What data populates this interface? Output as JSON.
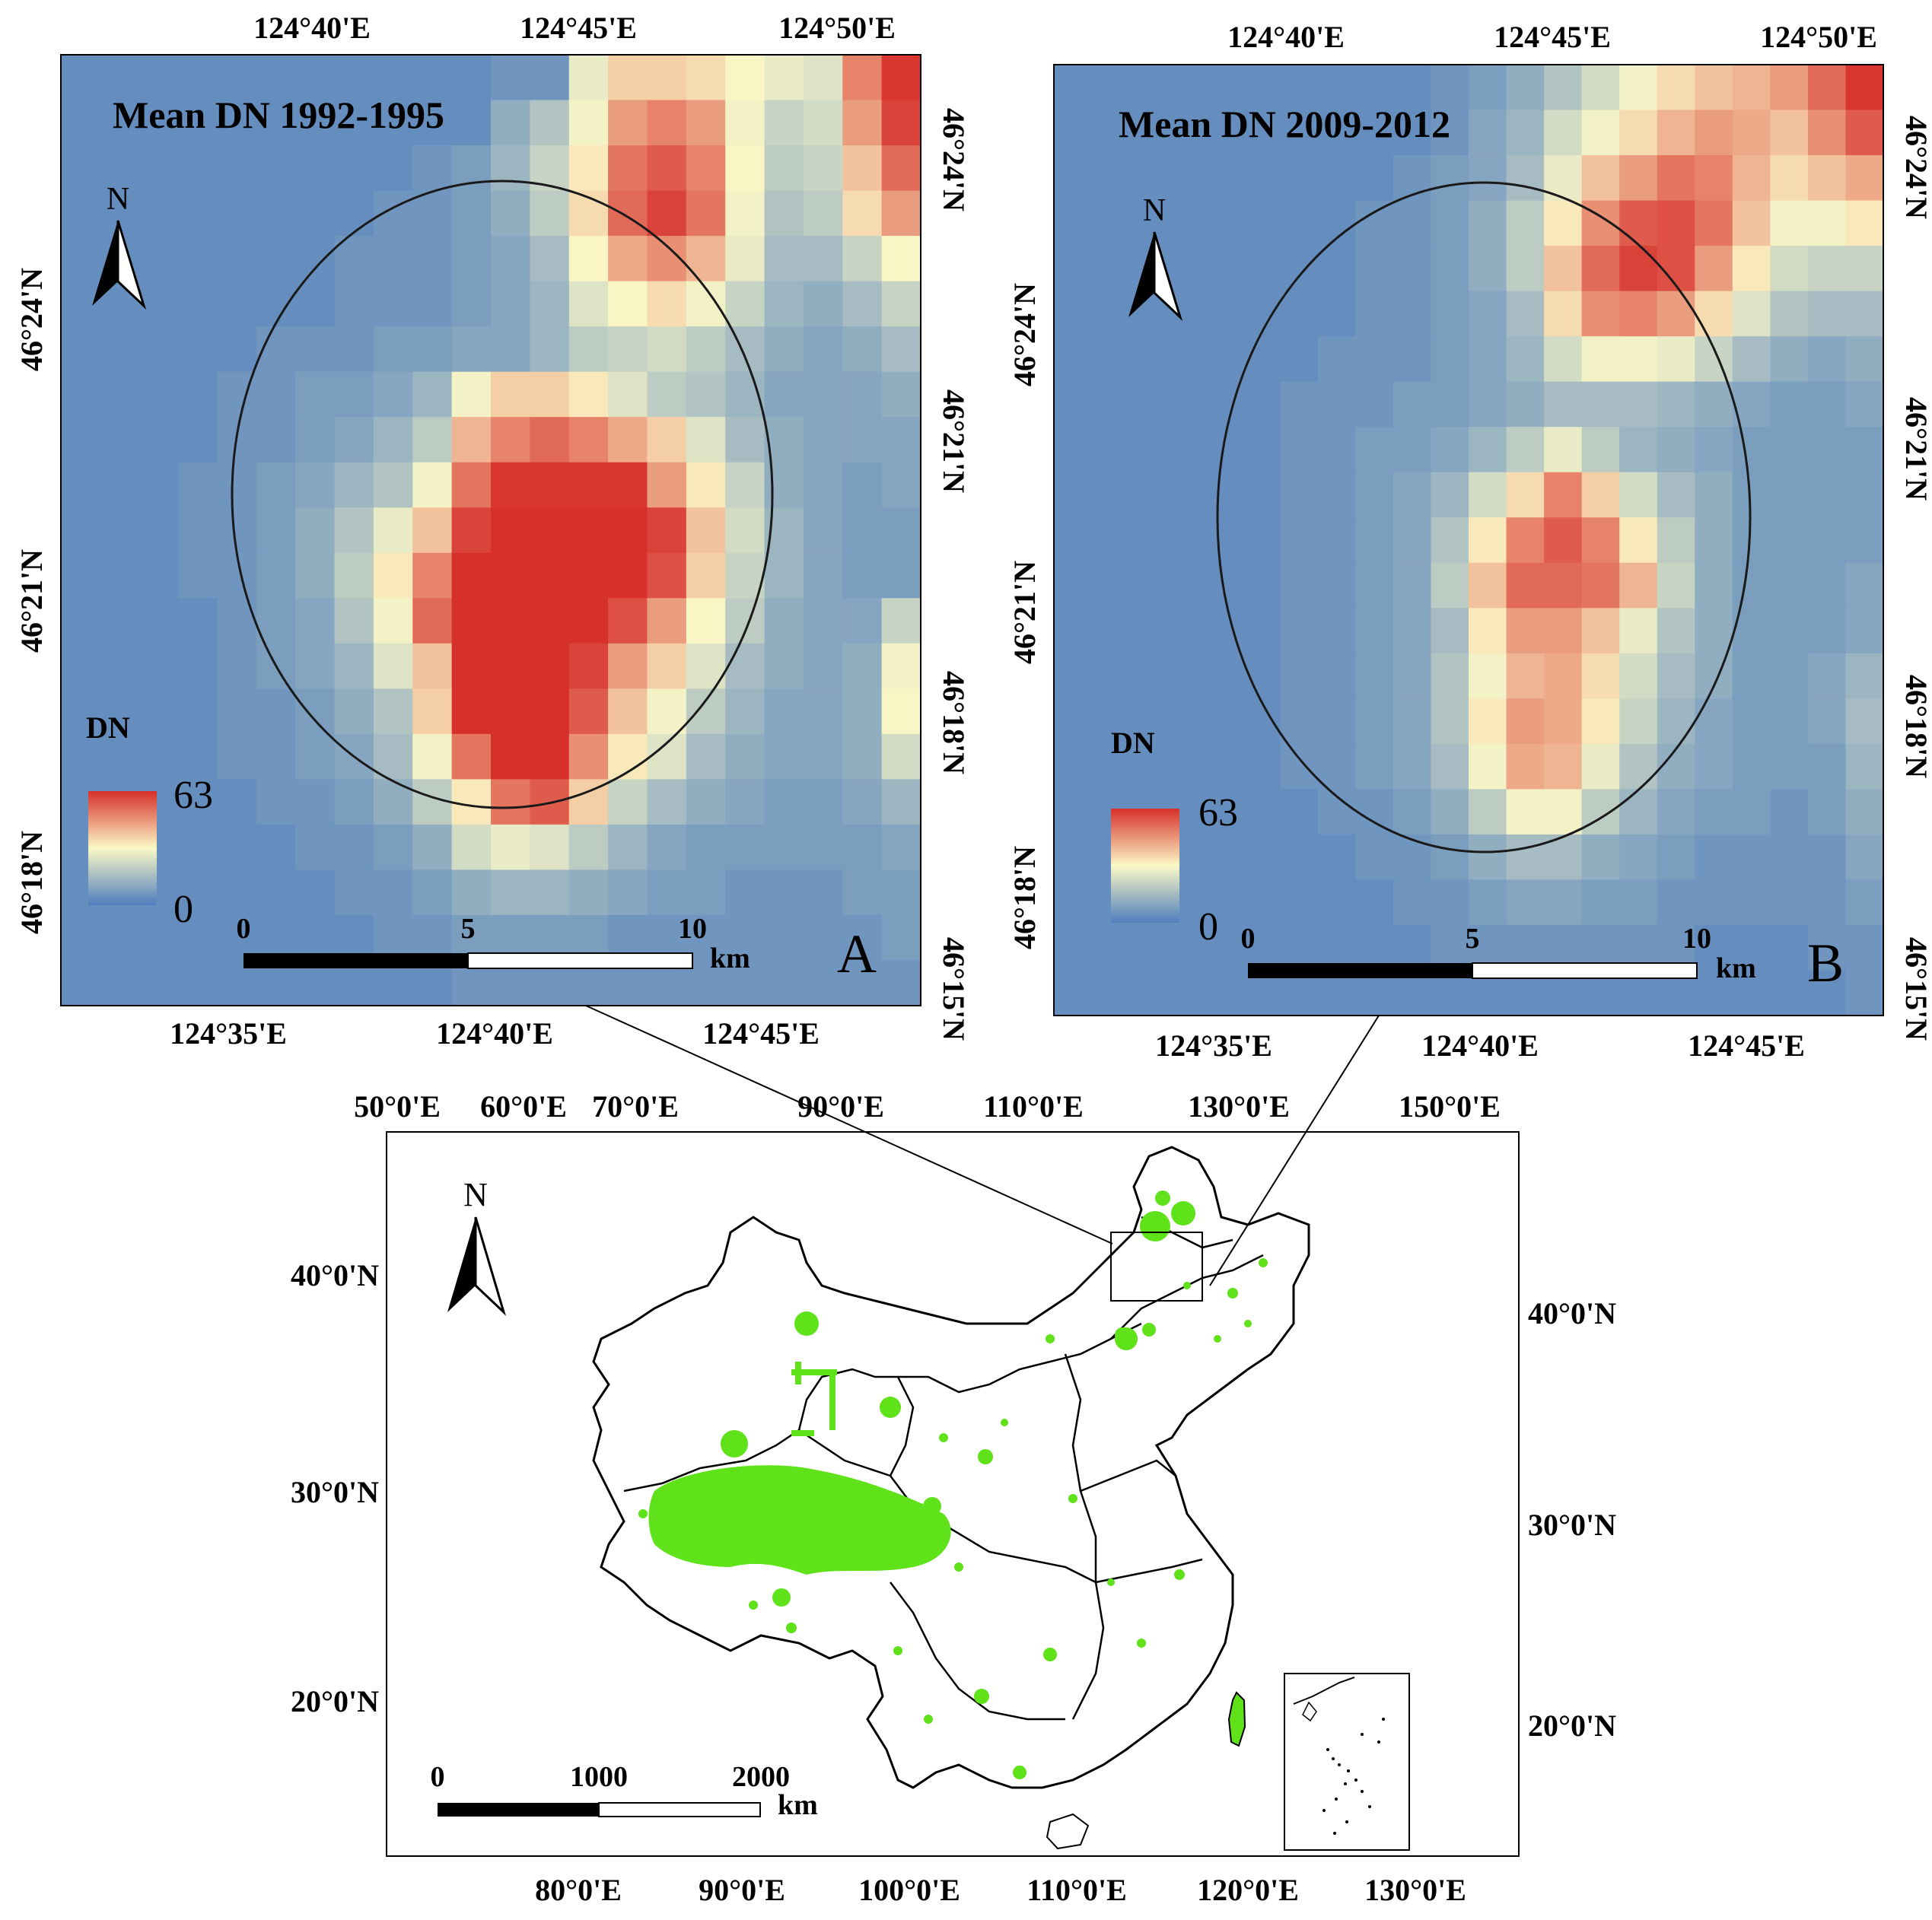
{
  "panel_a": {
    "title": "Mean DN 1992-1995",
    "letter": "A",
    "north": "N",
    "top_ticks": [
      "124°40'E",
      "124°45'E",
      "124°50'E"
    ],
    "bottom_ticks": [
      "124°35'E",
      "124°40'E",
      "124°45'E"
    ],
    "left_ticks": [
      "46°24'N",
      "46°21'N",
      "46°18'N"
    ],
    "right_ticks": [
      "46°24'N",
      "46°21'N",
      "46°18'N",
      "46°15'N"
    ],
    "legend": {
      "title": "DN",
      "max": "63",
      "min": "0"
    },
    "scalebar": {
      "labels": [
        "0",
        "5",
        "10"
      ],
      "unit": "km"
    },
    "grid_dn": [
      [
        4,
        4,
        4,
        4,
        4,
        4,
        4,
        4,
        4,
        4,
        4,
        6,
        6,
        28,
        38,
        38,
        36,
        32,
        28,
        26,
        50,
        62
      ],
      [
        4,
        4,
        4,
        4,
        4,
        4,
        4,
        4,
        4,
        4,
        4,
        12,
        18,
        30,
        46,
        50,
        46,
        30,
        22,
        24,
        46,
        60
      ],
      [
        4,
        4,
        4,
        4,
        4,
        4,
        4,
        4,
        4,
        6,
        8,
        14,
        22,
        34,
        52,
        56,
        50,
        32,
        20,
        22,
        40,
        54
      ],
      [
        4,
        4,
        4,
        4,
        4,
        4,
        4,
        4,
        6,
        6,
        8,
        12,
        20,
        36,
        54,
        60,
        52,
        30,
        18,
        20,
        36,
        46
      ],
      [
        4,
        4,
        4,
        4,
        4,
        4,
        4,
        6,
        6,
        6,
        8,
        10,
        16,
        32,
        44,
        48,
        42,
        28,
        16,
        16,
        22,
        32
      ],
      [
        4,
        4,
        4,
        4,
        4,
        4,
        4,
        6,
        6,
        6,
        8,
        10,
        14,
        26,
        32,
        36,
        30,
        22,
        14,
        12,
        16,
        22
      ],
      [
        4,
        4,
        4,
        4,
        4,
        6,
        6,
        6,
        8,
        8,
        10,
        10,
        14,
        20,
        22,
        24,
        20,
        16,
        12,
        10,
        12,
        16
      ],
      [
        4,
        4,
        4,
        4,
        6,
        6,
        8,
        8,
        10,
        14,
        30,
        38,
        38,
        34,
        26,
        20,
        18,
        14,
        10,
        10,
        10,
        12
      ],
      [
        4,
        4,
        4,
        4,
        6,
        6,
        8,
        10,
        14,
        20,
        42,
        50,
        54,
        50,
        44,
        38,
        26,
        16,
        12,
        10,
        10,
        10
      ],
      [
        4,
        4,
        4,
        6,
        6,
        8,
        10,
        14,
        18,
        30,
        52,
        62,
        62,
        62,
        62,
        46,
        34,
        22,
        12,
        10,
        8,
        10
      ],
      [
        4,
        4,
        4,
        6,
        6,
        8,
        12,
        18,
        28,
        40,
        60,
        63,
        63,
        63,
        63,
        60,
        40,
        24,
        14,
        10,
        8,
        8
      ],
      [
        4,
        4,
        4,
        6,
        6,
        8,
        12,
        20,
        34,
        50,
        63,
        63,
        63,
        63,
        63,
        58,
        38,
        22,
        14,
        10,
        8,
        8
      ],
      [
        4,
        4,
        4,
        4,
        6,
        8,
        10,
        18,
        30,
        54,
        63,
        63,
        63,
        63,
        58,
        46,
        32,
        20,
        12,
        10,
        10,
        22
      ],
      [
        4,
        4,
        4,
        4,
        6,
        8,
        10,
        14,
        26,
        40,
        63,
        63,
        63,
        60,
        46,
        38,
        26,
        16,
        12,
        10,
        12,
        30
      ],
      [
        4,
        4,
        4,
        4,
        6,
        6,
        8,
        12,
        18,
        38,
        63,
        63,
        63,
        56,
        40,
        30,
        20,
        14,
        10,
        10,
        12,
        32
      ],
      [
        4,
        4,
        4,
        4,
        6,
        6,
        8,
        10,
        16,
        30,
        52,
        63,
        63,
        48,
        34,
        26,
        16,
        12,
        10,
        10,
        12,
        24
      ],
      [
        4,
        4,
        4,
        4,
        4,
        6,
        6,
        8,
        12,
        20,
        34,
        52,
        56,
        38,
        22,
        16,
        12,
        10,
        8,
        8,
        10,
        14
      ],
      [
        4,
        4,
        4,
        4,
        4,
        4,
        6,
        6,
        8,
        12,
        24,
        28,
        26,
        20,
        14,
        10,
        8,
        8,
        8,
        8,
        8,
        10
      ],
      [
        4,
        4,
        4,
        4,
        4,
        4,
        4,
        6,
        6,
        8,
        12,
        14,
        14,
        12,
        10,
        8,
        8,
        6,
        6,
        6,
        8,
        8
      ],
      [
        4,
        4,
        4,
        4,
        4,
        4,
        4,
        4,
        6,
        6,
        8,
        8,
        8,
        8,
        6,
        6,
        6,
        6,
        6,
        6,
        6,
        8
      ],
      [
        4,
        4,
        4,
        4,
        4,
        4,
        4,
        4,
        4,
        4,
        6,
        6,
        6,
        6,
        6,
        6,
        6,
        6,
        6,
        6,
        6,
        6
      ]
    ]
  },
  "panel_b": {
    "title": "Mean DN 2009-2012",
    "letter": "B",
    "north": "N",
    "top_ticks": [
      "124°40'E",
      "124°45'E",
      "124°50'E"
    ],
    "bottom_ticks": [
      "124°35'E",
      "124°40'E",
      "124°45'E"
    ],
    "left_ticks": [
      "46°24'N",
      "46°21'N",
      "46°18'N"
    ],
    "right_ticks": [
      "46°24'N",
      "46°21'N",
      "46°18'N",
      "46°15'N"
    ],
    "legend": {
      "title": "DN",
      "max": "63",
      "min": "0"
    },
    "scalebar": {
      "labels": [
        "0",
        "5",
        "10"
      ],
      "unit": "km"
    },
    "grid_dn": [
      [
        4,
        4,
        4,
        4,
        4,
        4,
        4,
        4,
        4,
        4,
        6,
        8,
        12,
        18,
        24,
        30,
        36,
        40,
        42,
        46,
        54,
        62
      ],
      [
        4,
        4,
        4,
        4,
        4,
        4,
        4,
        4,
        4,
        4,
        6,
        10,
        14,
        24,
        30,
        36,
        42,
        46,
        44,
        40,
        48,
        56
      ],
      [
        4,
        4,
        4,
        4,
        4,
        4,
        4,
        4,
        4,
        6,
        8,
        10,
        16,
        28,
        40,
        46,
        52,
        50,
        42,
        36,
        40,
        44
      ],
      [
        4,
        4,
        4,
        4,
        4,
        4,
        4,
        4,
        6,
        6,
        8,
        12,
        20,
        34,
        48,
        56,
        58,
        52,
        40,
        30,
        30,
        34
      ],
      [
        4,
        4,
        4,
        4,
        4,
        4,
        4,
        4,
        6,
        6,
        8,
        12,
        20,
        40,
        54,
        60,
        58,
        46,
        34,
        24,
        22,
        22
      ],
      [
        4,
        4,
        4,
        4,
        4,
        4,
        4,
        4,
        6,
        6,
        8,
        10,
        16,
        36,
        48,
        50,
        46,
        36,
        26,
        18,
        16,
        16
      ],
      [
        4,
        4,
        4,
        4,
        4,
        4,
        4,
        6,
        6,
        6,
        8,
        10,
        14,
        24,
        30,
        30,
        28,
        22,
        16,
        12,
        10,
        12
      ],
      [
        4,
        4,
        4,
        4,
        4,
        4,
        6,
        6,
        6,
        8,
        8,
        10,
        12,
        16,
        16,
        16,
        14,
        12,
        10,
        8,
        8,
        10
      ],
      [
        4,
        4,
        4,
        4,
        4,
        4,
        6,
        6,
        8,
        8,
        10,
        14,
        20,
        28,
        20,
        14,
        12,
        10,
        8,
        8,
        8,
        8
      ],
      [
        4,
        4,
        4,
        4,
        4,
        4,
        6,
        6,
        8,
        10,
        14,
        24,
        36,
        50,
        38,
        24,
        16,
        12,
        8,
        8,
        8,
        8
      ],
      [
        4,
        4,
        4,
        4,
        4,
        4,
        6,
        6,
        8,
        10,
        18,
        34,
        50,
        56,
        50,
        34,
        20,
        12,
        8,
        8,
        8,
        8
      ],
      [
        4,
        4,
        4,
        4,
        4,
        4,
        6,
        6,
        8,
        10,
        20,
        40,
        54,
        54,
        52,
        42,
        22,
        12,
        8,
        8,
        8,
        10
      ],
      [
        4,
        4,
        4,
        4,
        4,
        4,
        6,
        6,
        8,
        10,
        16,
        34,
        46,
        46,
        40,
        28,
        18,
        12,
        8,
        8,
        8,
        10
      ],
      [
        4,
        4,
        4,
        4,
        4,
        4,
        6,
        6,
        8,
        10,
        18,
        30,
        42,
        44,
        36,
        24,
        16,
        12,
        8,
        8,
        10,
        14
      ],
      [
        4,
        4,
        4,
        4,
        4,
        4,
        6,
        6,
        8,
        10,
        18,
        34,
        46,
        44,
        34,
        22,
        14,
        10,
        8,
        8,
        10,
        16
      ],
      [
        4,
        4,
        4,
        4,
        4,
        4,
        6,
        6,
        8,
        10,
        16,
        30,
        44,
        42,
        28,
        18,
        12,
        10,
        8,
        8,
        8,
        14
      ],
      [
        4,
        4,
        4,
        4,
        4,
        4,
        4,
        6,
        6,
        8,
        12,
        20,
        30,
        30,
        20,
        14,
        10,
        8,
        8,
        6,
        8,
        12
      ],
      [
        4,
        4,
        4,
        4,
        4,
        4,
        4,
        4,
        6,
        6,
        8,
        12,
        16,
        16,
        12,
        10,
        8,
        6,
        6,
        6,
        6,
        10
      ],
      [
        4,
        4,
        4,
        4,
        4,
        4,
        4,
        4,
        4,
        6,
        6,
        8,
        10,
        10,
        8,
        8,
        6,
        6,
        6,
        6,
        6,
        8
      ],
      [
        4,
        4,
        4,
        4,
        4,
        4,
        4,
        4,
        4,
        4,
        6,
        6,
        6,
        6,
        6,
        6,
        6,
        4,
        4,
        4,
        6,
        6
      ],
      [
        4,
        4,
        4,
        4,
        4,
        4,
        4,
        4,
        4,
        4,
        4,
        4,
        4,
        4,
        4,
        4,
        4,
        4,
        4,
        4,
        4,
        6
      ]
    ]
  },
  "china_map": {
    "north": "N",
    "top_ticks": [
      "50°0'E",
      "60°0'E",
      "70°0'E",
      "90°0'E",
      "110°0'E",
      "130°0'E",
      "150°0'E"
    ],
    "bottom_ticks": [
      "80°0'E",
      "90°0'E",
      "100°0'E",
      "110°0'E",
      "120°0'E",
      "130°0'E"
    ],
    "left_ticks": [
      "40°0'N",
      "30°0'N",
      "20°0'N"
    ],
    "right_ticks": [
      "40°0'N",
      "30°0'N",
      "20°0'N"
    ],
    "scalebar": {
      "labels": [
        "0",
        "1000",
        "2000"
      ],
      "unit": "km"
    }
  },
  "colors": {
    "low": "#4f7fbd",
    "mid": "#fbf8c6",
    "high": "#d7302a",
    "green": "#5fe21a"
  }
}
